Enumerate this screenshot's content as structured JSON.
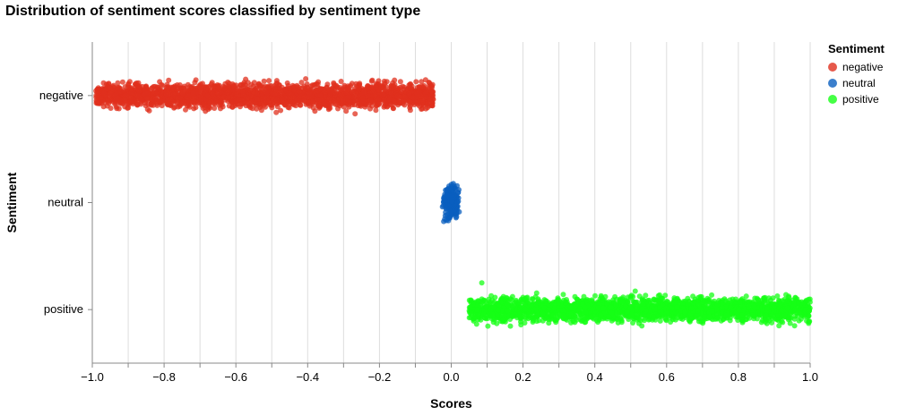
{
  "chart_data": {
    "type": "scatter",
    "title": "Distribution of sentiment scores classified by sentiment type",
    "xlabel": "Scores",
    "ylabel": "Sentiment",
    "xlim": [
      -1.0,
      1.0
    ],
    "x_ticks": [
      -1.0,
      -0.8,
      -0.6,
      -0.4,
      -0.2,
      0.0,
      0.2,
      0.4,
      0.6,
      0.8,
      1.0
    ],
    "x_tick_labels": [
      "−1.0",
      "−0.8",
      "−0.6",
      "−0.4",
      "−0.2",
      "0.0",
      "0.2",
      "0.4",
      "0.6",
      "0.8",
      "1.0"
    ],
    "categories": [
      "negative",
      "neutral",
      "positive"
    ],
    "grid": true,
    "jitter": true,
    "legend": {
      "title": "Sentiment",
      "placement": "top-right"
    },
    "series": [
      {
        "name": "negative",
        "color": "#e0301e",
        "x_range": [
          -0.99,
          -0.05
        ]
      },
      {
        "name": "neutral",
        "color": "#0a5fbf",
        "x_range": [
          -0.05,
          0.05
        ]
      },
      {
        "name": "positive",
        "color": "#16ff16",
        "x_range": [
          0.05,
          1.0
        ]
      }
    ]
  }
}
